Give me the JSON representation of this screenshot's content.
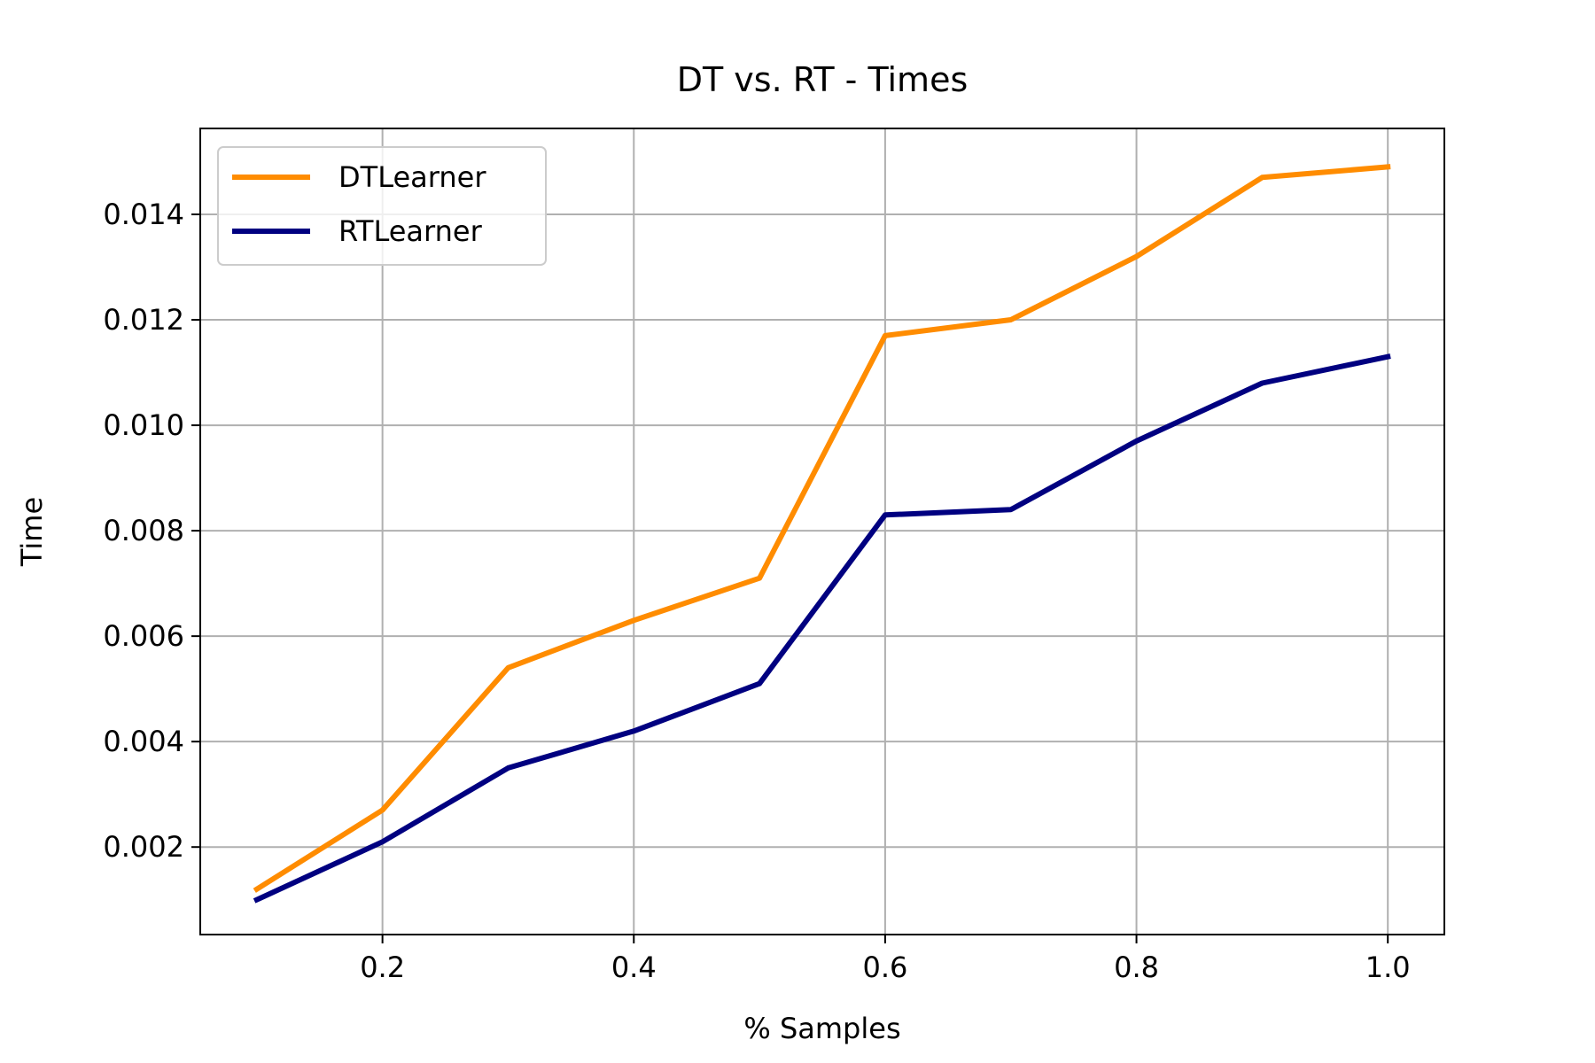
{
  "chart_data": {
    "type": "line",
    "title": "DT vs. RT - Times",
    "xlabel": "% Samples",
    "ylabel": "Time",
    "x": [
      0.1,
      0.2,
      0.3,
      0.4,
      0.5,
      0.6,
      0.7,
      0.8,
      0.9,
      1.0
    ],
    "series": [
      {
        "name": "DTLearner",
        "color": "#ff8c00",
        "values": [
          0.0012,
          0.0027,
          0.0054,
          0.0063,
          0.0071,
          0.0117,
          0.012,
          0.0132,
          0.0147,
          0.0149
        ]
      },
      {
        "name": "RTLearner",
        "color": "#000080",
        "values": [
          0.001,
          0.0021,
          0.0035,
          0.0042,
          0.0051,
          0.0083,
          0.0084,
          0.0097,
          0.0108,
          0.0113
        ]
      }
    ],
    "xlim": [
      0.055,
      1.045
    ],
    "ylim": [
      0.00034,
      0.01563
    ],
    "xticks": [
      "0.2",
      "0.4",
      "0.6",
      "0.8",
      "1.0"
    ],
    "yticks": [
      "0.002",
      "0.004",
      "0.006",
      "0.008",
      "0.010",
      "0.012",
      "0.014"
    ],
    "grid": true,
    "legend_position": "upper-left"
  }
}
